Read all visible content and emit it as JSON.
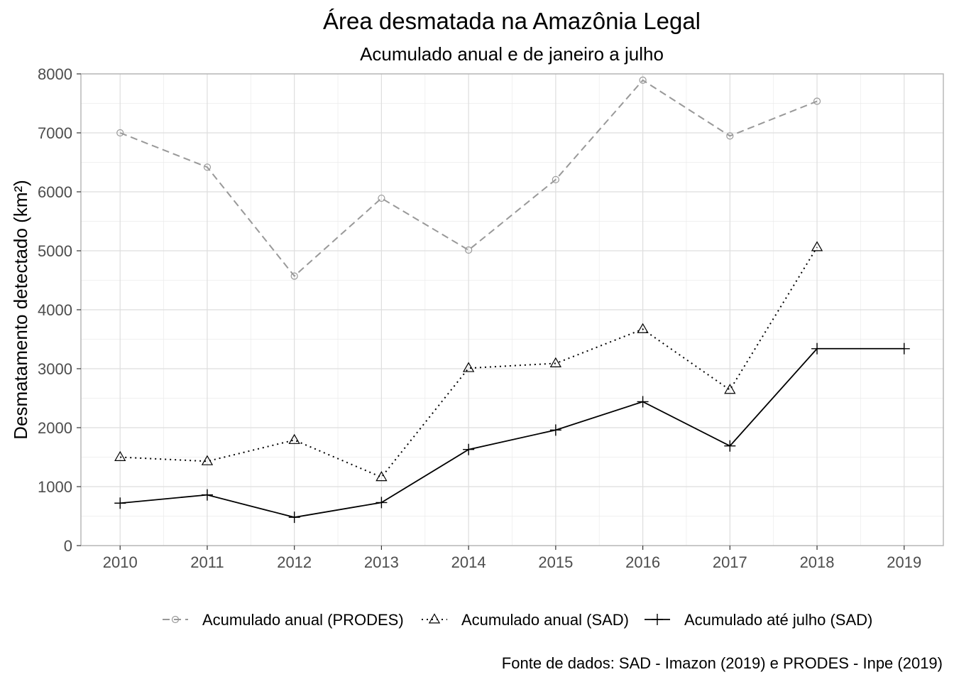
{
  "chart_data": {
    "type": "line",
    "title": "Área desmatada na Amazônia Legal",
    "subtitle": "Acumulado anual e de janeiro a julho",
    "ylabel": "Desmatamento detectado (km²)",
    "xlabel": "",
    "caption": "Fonte de dados: SAD - Imazon (2019) e PRODES - Inpe (2019)",
    "x": [
      2010,
      2011,
      2012,
      2013,
      2014,
      2015,
      2016,
      2017,
      2018,
      2019
    ],
    "xlim": [
      2009.55,
      2019.45
    ],
    "ylim": [
      0,
      8000
    ],
    "yticks": [
      0,
      1000,
      2000,
      3000,
      4000,
      5000,
      6000,
      7000,
      8000
    ],
    "grid": true,
    "legend_position": "bottom",
    "series": [
      {
        "name": "Acumulado anual (PRODES)",
        "values": [
          7000,
          6418,
          4571,
          5891,
          5012,
          6207,
          7893,
          6947,
          7536,
          null
        ],
        "color": "#999999",
        "line": "dashed",
        "marker": "circle"
      },
      {
        "name": "Acumulado anual (SAD)",
        "values": [
          1500,
          1430,
          1790,
          1160,
          3010,
          3090,
          3670,
          2640,
          5060,
          null
        ],
        "color": "#000000",
        "line": "dotted",
        "marker": "triangle"
      },
      {
        "name": "Acumulado até julho (SAD)",
        "values": [
          720,
          860,
          480,
          730,
          1630,
          1960,
          2440,
          1690,
          3340,
          3340
        ],
        "color": "#000000",
        "line": "solid",
        "marker": "plus"
      }
    ]
  }
}
